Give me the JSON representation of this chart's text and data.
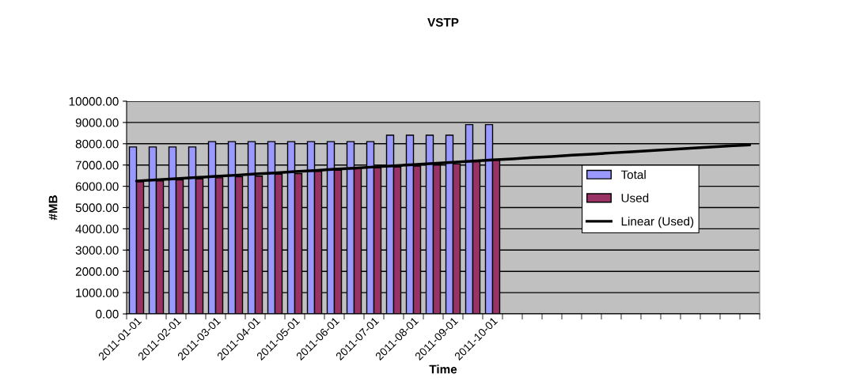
{
  "chart_data": {
    "type": "bar",
    "title": "VSTP",
    "xlabel": "Time",
    "ylabel": "#MB",
    "categories": [
      "2011-01-01",
      null,
      "2011-02-01",
      null,
      "2011-03-01",
      null,
      "2011-04-01",
      null,
      "2011-05-01",
      null,
      "2011-06-01",
      null,
      "2011-07-01",
      null,
      "2011-08-01",
      null,
      "2011-09-01",
      null,
      "2011-10-01",
      null,
      null,
      null,
      null,
      null,
      null,
      null,
      null,
      null,
      null,
      null,
      null,
      null
    ],
    "series": [
      {
        "name": "Total",
        "color": "#9999ff",
        "values": [
          7850,
          7850,
          7850,
          7850,
          8100,
          8100,
          8100,
          8100,
          8100,
          8100,
          8100,
          8100,
          8100,
          8400,
          8400,
          8400,
          8400,
          8900,
          8900,
          null,
          null,
          null,
          null,
          null,
          null,
          null,
          null,
          null,
          null,
          null,
          null,
          null
        ]
      },
      {
        "name": "Used",
        "color": "#993366",
        "values": [
          6220,
          6250,
          6300,
          6350,
          6400,
          6450,
          6480,
          6570,
          6600,
          6700,
          6750,
          6830,
          6870,
          6900,
          6950,
          7000,
          7050,
          7150,
          7250,
          null,
          null,
          null,
          null,
          null,
          null,
          null,
          null,
          null,
          null,
          null,
          null,
          null
        ]
      },
      {
        "name": "Linear (Used)",
        "type": "line",
        "color": "#000000",
        "values": [
          6250,
          6300,
          6360,
          6410,
          6470,
          6520,
          6580,
          6630,
          6690,
          6740,
          6800,
          6850,
          6910,
          6960,
          7020,
          7070,
          7130,
          7180,
          7240,
          7290,
          7350,
          7400,
          7460,
          7510,
          7570,
          7620,
          7680,
          7730,
          7790,
          7840,
          7900,
          7950
        ]
      }
    ],
    "ylim": [
      0,
      10000
    ],
    "yticks": [
      {
        "value": 0,
        "label": "0.00"
      },
      {
        "value": 1000,
        "label": "1000.00"
      },
      {
        "value": 2000,
        "label": "2000.00"
      },
      {
        "value": 3000,
        "label": "3000.00"
      },
      {
        "value": 4000,
        "label": "4000.00"
      },
      {
        "value": 5000,
        "label": "5000.00"
      },
      {
        "value": 6000,
        "label": "6000.00"
      },
      {
        "value": 7000,
        "label": "7000.00"
      },
      {
        "value": 8000,
        "label": "8000.00"
      },
      {
        "value": 9000,
        "label": "9000.00"
      },
      {
        "value": 10000,
        "label": "10000.00"
      }
    ],
    "grid": "y",
    "legend": "right",
    "line_style": "solid",
    "marker": "none"
  }
}
